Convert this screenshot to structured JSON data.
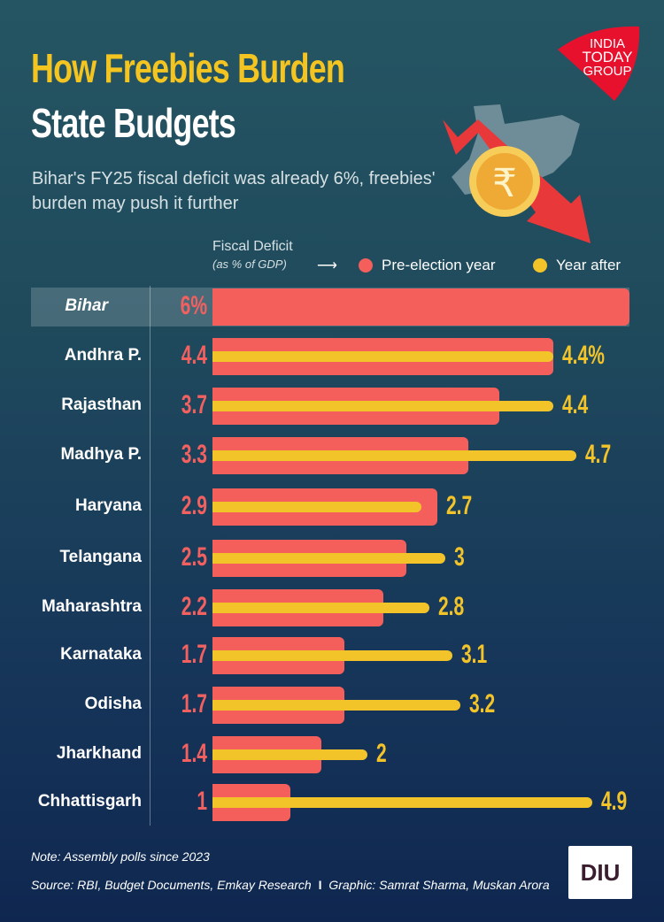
{
  "header": {
    "title_line1": "How Freebies Burden",
    "title_line2": "State Budgets",
    "subtitle": "Bihar's FY25 fiscal deficit was already 6%, freebies' burden may push it further"
  },
  "logo": {
    "text": "INDIA TODAY GROUP",
    "color": "#e8112d"
  },
  "chart_data": {
    "type": "bar",
    "orientation": "horizontal",
    "measure_label": "Fiscal Deficit",
    "measure_unit": "(as % of GDP)",
    "categories": [
      "Bihar",
      "Andhra P.",
      "Rajasthan",
      "Madhya P.",
      "Haryana",
      "Telangana",
      "Maharashtra",
      "Karnataka",
      "Odisha",
      "Jharkhand",
      "Chhattisgarh"
    ],
    "series": [
      {
        "name": "Pre-election year",
        "color": "#f45e5b",
        "values": [
          6,
          4.4,
          3.7,
          3.3,
          2.9,
          2.5,
          2.2,
          1.7,
          1.7,
          1.4,
          1
        ]
      },
      {
        "name": "Year after",
        "color": "#f2c42a",
        "values": [
          null,
          4.4,
          4.4,
          4.7,
          2.7,
          3,
          2.8,
          3.1,
          3.2,
          2,
          4.9
        ]
      }
    ],
    "value_labels_pre": [
      "6%",
      "4.4",
      "3.7",
      "3.3",
      "2.9",
      "2.5",
      "2.2",
      "1.7",
      "1.7",
      "1.4",
      "1"
    ],
    "value_labels_after": [
      "",
      "4.4%",
      "4.4",
      "4.7",
      "2.7",
      "3",
      "2.8",
      "3.1",
      "3.2",
      "2",
      "4.9"
    ],
    "legend_position": "top-right",
    "grid": false
  },
  "footer": {
    "note": "Note: Assembly polls since 2023",
    "source": "Source: RBI, Budget Documents, Emkay Research",
    "separator": "I",
    "credit": "Graphic: Samrat Sharma, Muskan Arora",
    "badge": "DIU"
  }
}
